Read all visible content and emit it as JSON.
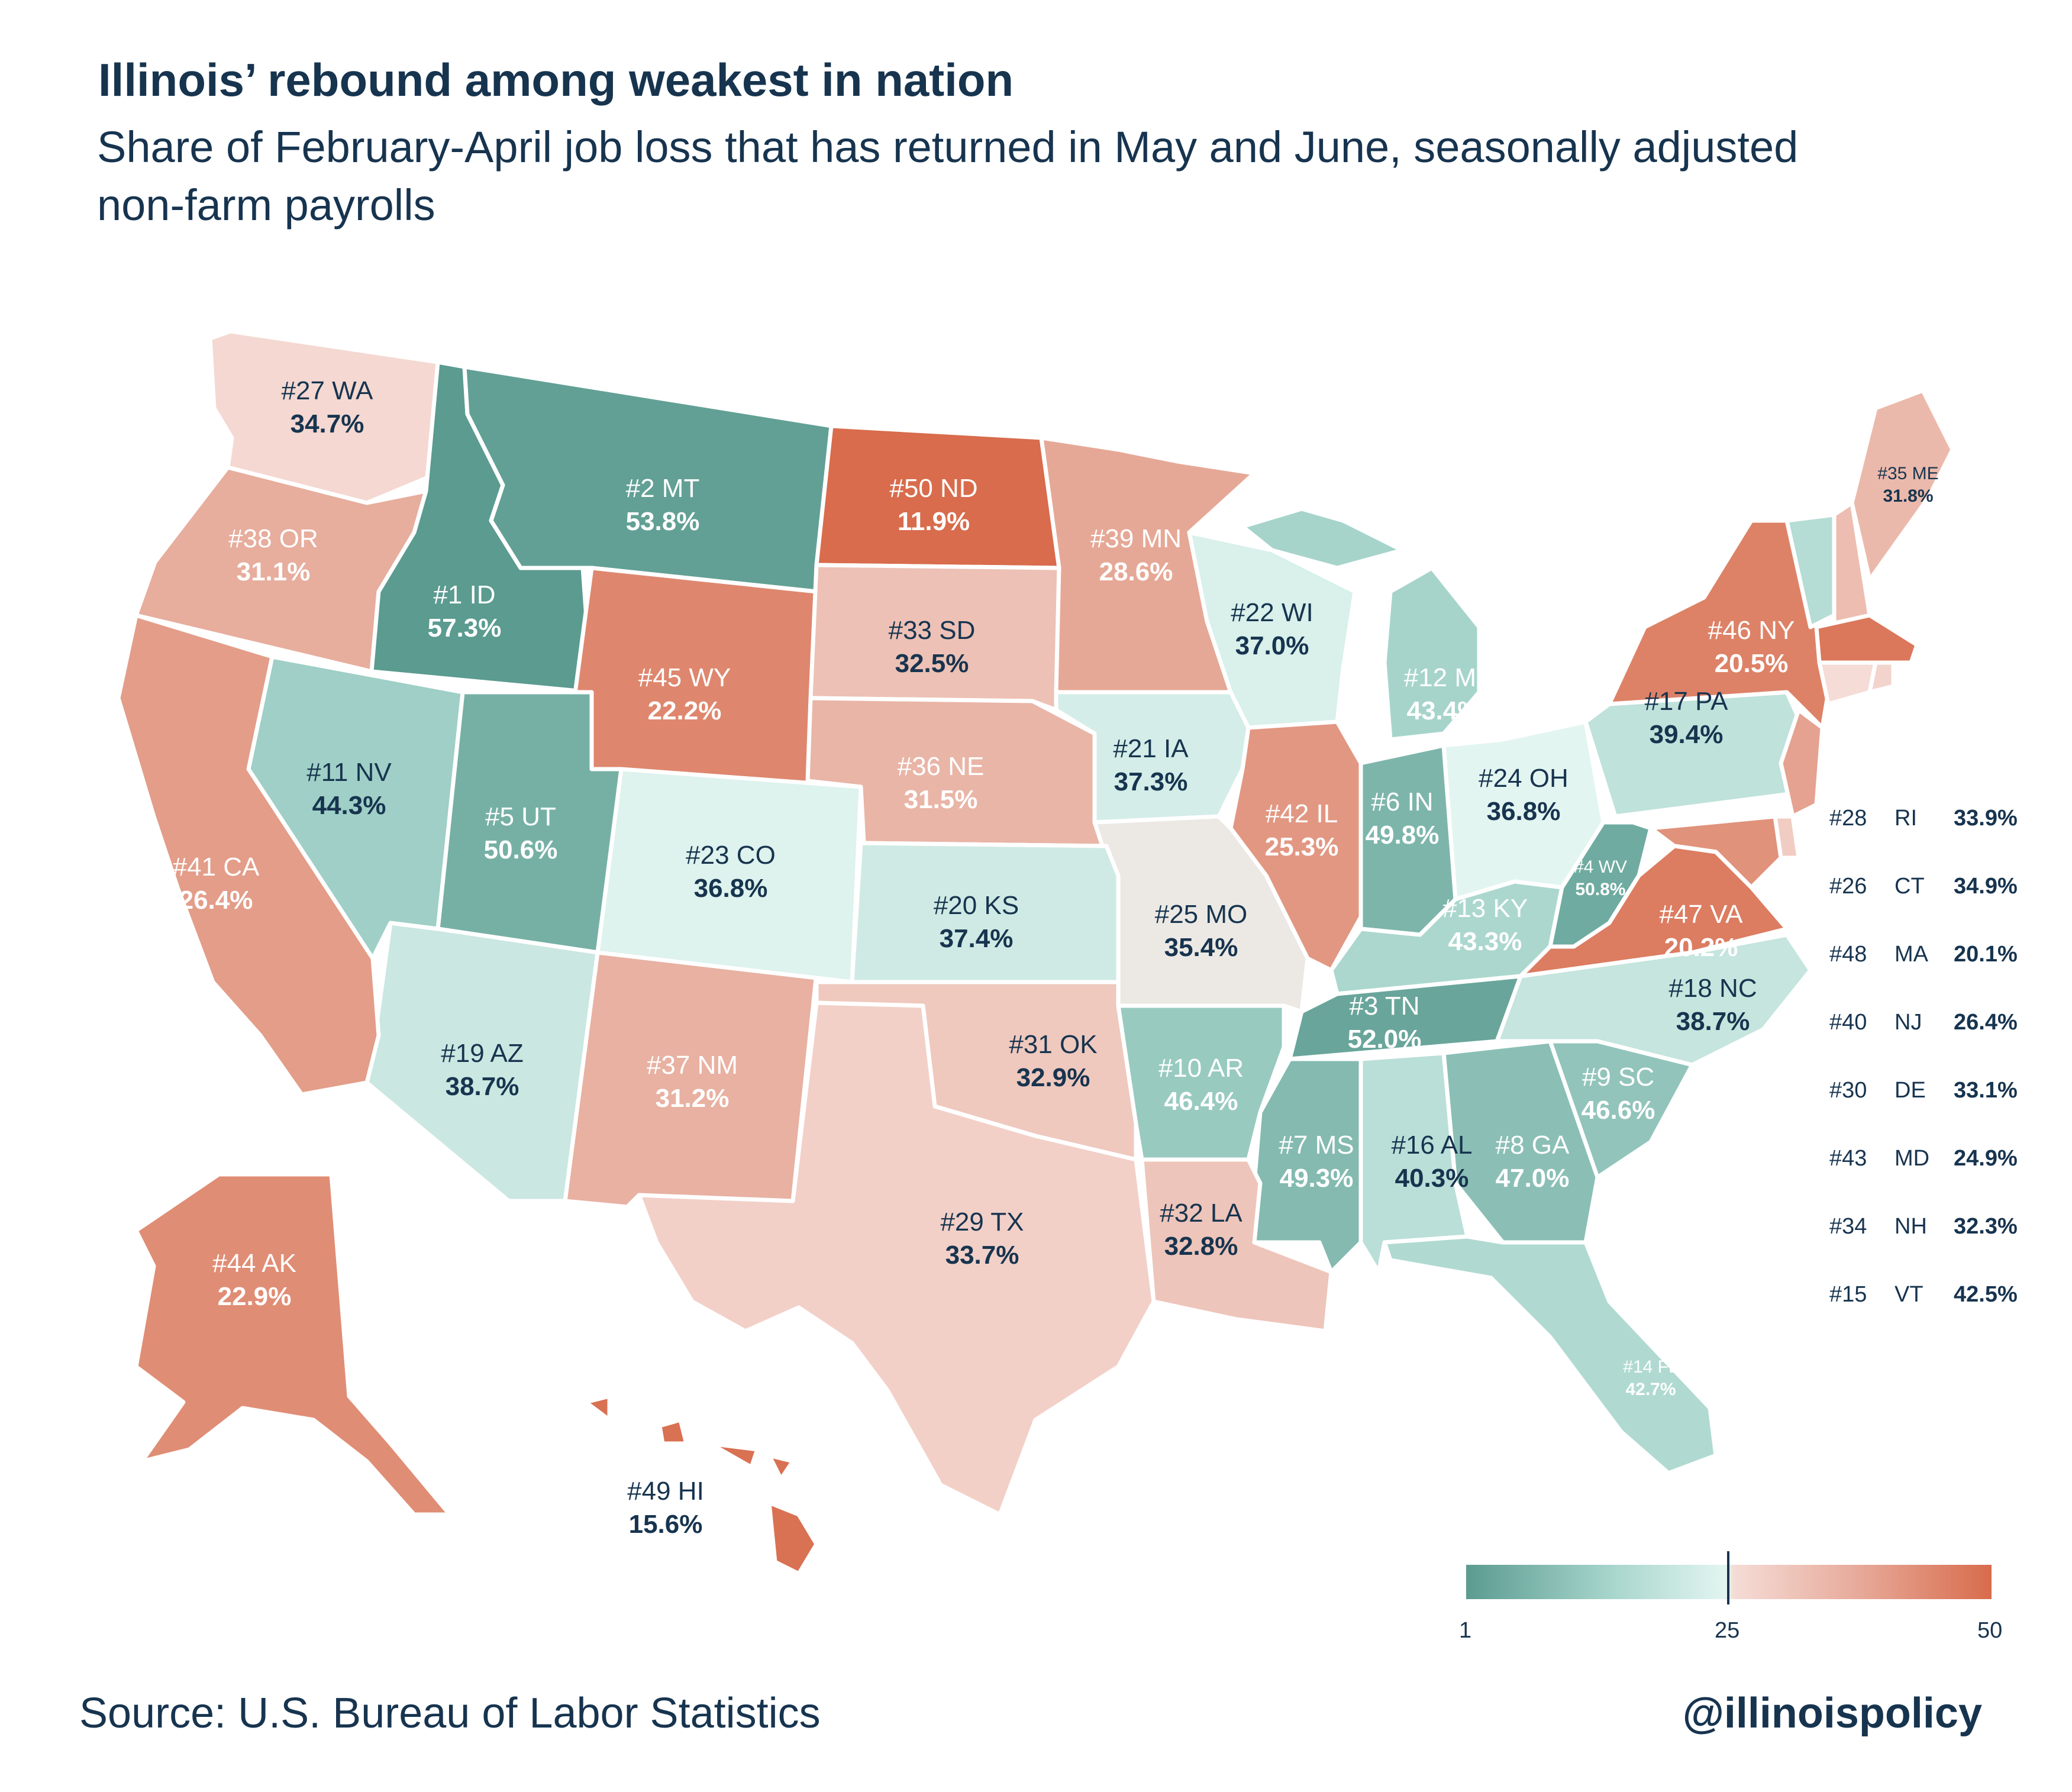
{
  "title": "Illinois’ rebound among weakest in nation",
  "subtitle": "Share of February-April job loss that has returned in May and June, seasonally adjusted non-farm payrolls",
  "source": "Source: U.S. Bureau of Labor Statistics",
  "handle": "@illinoispolicy",
  "colors": {
    "high_recovery": "#5b9b90",
    "mid": "#e3f5f1",
    "low_recovery": "#d86c4c",
    "text": "#17344f"
  },
  "legend": {
    "min": "1",
    "mid": "25",
    "max": "50",
    "meaning": "rank"
  },
  "states": [
    {
      "abbr": "ID",
      "rank": 1,
      "value": "57.3%"
    },
    {
      "abbr": "MT",
      "rank": 2,
      "value": "53.8%"
    },
    {
      "abbr": "TN",
      "rank": 3,
      "value": "52.0%"
    },
    {
      "abbr": "WV",
      "rank": 4,
      "value": "50.8%"
    },
    {
      "abbr": "UT",
      "rank": 5,
      "value": "50.6%"
    },
    {
      "abbr": "IN",
      "rank": 6,
      "value": "49.8%"
    },
    {
      "abbr": "MS",
      "rank": 7,
      "value": "49.3%"
    },
    {
      "abbr": "GA",
      "rank": 8,
      "value": "47.0%"
    },
    {
      "abbr": "SC",
      "rank": 9,
      "value": "46.6%"
    },
    {
      "abbr": "AR",
      "rank": 10,
      "value": "46.4%"
    },
    {
      "abbr": "NV",
      "rank": 11,
      "value": "44.3%"
    },
    {
      "abbr": "MI",
      "rank": 12,
      "value": "43.4%"
    },
    {
      "abbr": "KY",
      "rank": 13,
      "value": "43.3%"
    },
    {
      "abbr": "FL",
      "rank": 14,
      "value": "42.7%"
    },
    {
      "abbr": "VT",
      "rank": 15,
      "value": "42.5%"
    },
    {
      "abbr": "AL",
      "rank": 16,
      "value": "40.3%"
    },
    {
      "abbr": "PA",
      "rank": 17,
      "value": "39.4%"
    },
    {
      "abbr": "NC",
      "rank": 18,
      "value": "38.7%"
    },
    {
      "abbr": "AZ",
      "rank": 19,
      "value": "38.7%"
    },
    {
      "abbr": "KS",
      "rank": 20,
      "value": "37.4%"
    },
    {
      "abbr": "IA",
      "rank": 21,
      "value": "37.3%"
    },
    {
      "abbr": "WI",
      "rank": 22,
      "value": "37.0%"
    },
    {
      "abbr": "CO",
      "rank": 23,
      "value": "36.8%"
    },
    {
      "abbr": "OH",
      "rank": 24,
      "value": "36.8%"
    },
    {
      "abbr": "MO",
      "rank": 25,
      "value": "35.4%"
    },
    {
      "abbr": "CT",
      "rank": 26,
      "value": "34.9%"
    },
    {
      "abbr": "WA",
      "rank": 27,
      "value": "34.7%"
    },
    {
      "abbr": "RI",
      "rank": 28,
      "value": "33.9%"
    },
    {
      "abbr": "TX",
      "rank": 29,
      "value": "33.7%"
    },
    {
      "abbr": "DE",
      "rank": 30,
      "value": "33.1%"
    },
    {
      "abbr": "OK",
      "rank": 31,
      "value": "32.9%"
    },
    {
      "abbr": "LA",
      "rank": 32,
      "value": "32.8%"
    },
    {
      "abbr": "SD",
      "rank": 33,
      "value": "32.5%"
    },
    {
      "abbr": "NH",
      "rank": 34,
      "value": "32.3%"
    },
    {
      "abbr": "ME",
      "rank": 35,
      "value": "31.8%"
    },
    {
      "abbr": "NE",
      "rank": 36,
      "value": "31.5%"
    },
    {
      "abbr": "NM",
      "rank": 37,
      "value": "31.2%"
    },
    {
      "abbr": "OR",
      "rank": 38,
      "value": "31.1%"
    },
    {
      "abbr": "MN",
      "rank": 39,
      "value": "28.6%"
    },
    {
      "abbr": "NJ",
      "rank": 40,
      "value": "26.4%"
    },
    {
      "abbr": "CA",
      "rank": 41,
      "value": "26.4%"
    },
    {
      "abbr": "IL",
      "rank": 42,
      "value": "25.3%"
    },
    {
      "abbr": "MD",
      "rank": 43,
      "value": "24.9%"
    },
    {
      "abbr": "AK",
      "rank": 44,
      "value": "22.9%"
    },
    {
      "abbr": "WY",
      "rank": 45,
      "value": "22.2%"
    },
    {
      "abbr": "NY",
      "rank": 46,
      "value": "20.5%"
    },
    {
      "abbr": "VA",
      "rank": 47,
      "value": "20.2%"
    },
    {
      "abbr": "MA",
      "rank": 48,
      "value": "20.1%"
    },
    {
      "abbr": "HI",
      "rank": 49,
      "value": "15.6%"
    },
    {
      "abbr": "ND",
      "rank": 50,
      "value": "11.9%"
    }
  ],
  "side_table": [
    {
      "rank": "#28",
      "abbr": "RI",
      "value": "33.9%"
    },
    {
      "rank": "#26",
      "abbr": "CT",
      "value": "34.9%"
    },
    {
      "rank": "#48",
      "abbr": "MA",
      "value": "20.1%"
    },
    {
      "rank": "#40",
      "abbr": "NJ",
      "value": "26.4%"
    },
    {
      "rank": "#30",
      "abbr": "DE",
      "value": "33.1%"
    },
    {
      "rank": "#43",
      "abbr": "MD",
      "value": "24.9%"
    },
    {
      "rank": "#34",
      "abbr": "NH",
      "value": "32.3%"
    },
    {
      "rank": "#15",
      "abbr": "VT",
      "value": "42.5%"
    }
  ]
}
